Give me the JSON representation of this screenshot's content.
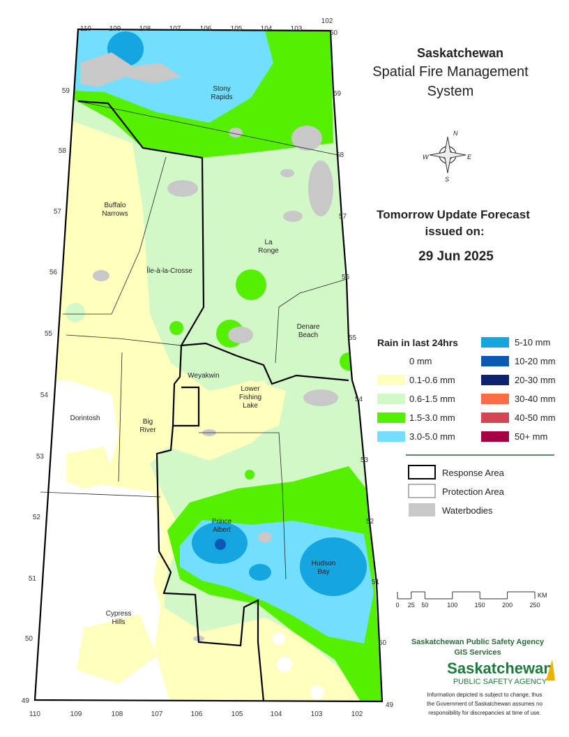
{
  "title": "Saskatchewan",
  "subtitle": [
    "Spatial Fire Management",
    "System"
  ],
  "forecast": {
    "heading": "Tomorrow Update Forecast",
    "issued": "issued on:",
    "date": "29 Jun 2025"
  },
  "compass": {
    "n": "N",
    "e": "E",
    "s": "S",
    "w": "W"
  },
  "rain_legend": {
    "title": "Rain in last 24hrs",
    "items": [
      {
        "label": "0 mm",
        "color": "#ffffff"
      },
      {
        "label": "0.1-0.6 mm",
        "color": "#ffffbe"
      },
      {
        "label": "0.6-1.5 mm",
        "color": "#d3f8c8"
      },
      {
        "label": "1.5-3.0 mm",
        "color": "#55f000"
      },
      {
        "label": "3.0-5.0 mm",
        "color": "#73dfff"
      },
      {
        "label": "5-10 mm",
        "color": "#15a5e0"
      },
      {
        "label": "10-20 mm",
        "color": "#0a58b4"
      },
      {
        "label": "20-30 mm",
        "color": "#0c2470"
      },
      {
        "label": "30-40 mm",
        "color": "#fa6e46"
      },
      {
        "label": "40-50 mm",
        "color": "#d74454"
      },
      {
        "label": "50+ mm",
        "color": "#a50044"
      }
    ]
  },
  "boundary_legend": [
    "Response Area",
    "Protection Area",
    "Waterbodies"
  ],
  "scale_bar": {
    "ticks": [
      0,
      25,
      50,
      100,
      150,
      200,
      250
    ],
    "unit": "KM"
  },
  "places": [
    [
      "Stony",
      "Rapids"
    ],
    [
      "Buffalo",
      "Narrows"
    ],
    [
      "La",
      "Ronge"
    ],
    [
      "Île-à-la-Crosse"
    ],
    [
      "Denare",
      "Beach"
    ],
    [
      "Weyakwin"
    ],
    [
      "Lower",
      "Fishing",
      "Lake"
    ],
    [
      "Dorintosh"
    ],
    [
      "Big",
      "River"
    ],
    [
      "Prince",
      "Albert"
    ],
    [
      "Hudson",
      "Bay"
    ],
    [
      "Cypress",
      "Hills"
    ]
  ],
  "longitude_labels": {
    "top": [
      110,
      109,
      108,
      107,
      106,
      105,
      104,
      103,
      102
    ],
    "bottom": [
      110,
      109,
      108,
      107,
      106,
      105,
      104,
      103,
      102
    ]
  },
  "latitude_labels": {
    "left": [
      59,
      58,
      57,
      56,
      55,
      54,
      53,
      52,
      51,
      50,
      49
    ],
    "right": [
      60,
      59,
      58,
      57,
      56,
      55,
      54,
      53,
      52,
      51,
      50,
      49
    ]
  },
  "agency": {
    "name": "Saskatchewan Public Safety Agency",
    "unit": "GIS  Services",
    "logo_main": "Saskatchewan",
    "logo_sub": "PUBLIC SAFETY AGENCY"
  },
  "disclaimer": [
    "Information depicted is subject to change, thus",
    "the Government of Saskatchewan assumes no",
    "responsibility for discrepancies at time of use."
  ]
}
